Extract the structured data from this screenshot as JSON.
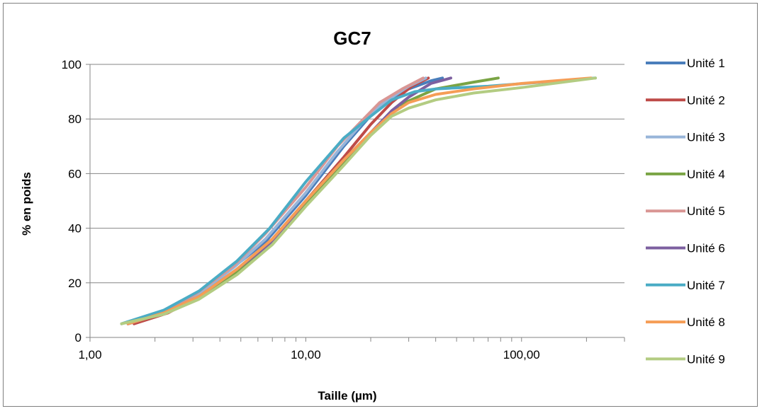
{
  "chart_data": {
    "type": "line",
    "title": "GC7",
    "xlabel": "Taille (µm)",
    "ylabel": "% en poids",
    "xscale": "log",
    "xlim": [
      1,
      300
    ],
    "ylim": [
      0,
      100
    ],
    "x_ticks": [
      {
        "value": 1,
        "label": "1,00"
      },
      {
        "value": 10,
        "label": "10,00"
      },
      {
        "value": 100,
        "label": "100,00"
      }
    ],
    "y_ticks": [
      {
        "value": 0,
        "label": "0"
      },
      {
        "value": 20,
        "label": "20"
      },
      {
        "value": 40,
        "label": "40"
      },
      {
        "value": 60,
        "label": "60"
      },
      {
        "value": 80,
        "label": "80"
      },
      {
        "value": 100,
        "label": "100"
      }
    ],
    "grid": "horizontal",
    "legend_position": "right",
    "series": [
      {
        "name": "Unité 1",
        "color": "#4a7ebb",
        "points": [
          [
            1.5,
            5
          ],
          [
            2.2,
            9
          ],
          [
            3,
            15
          ],
          [
            4.5,
            25
          ],
          [
            6.5,
            35
          ],
          [
            10,
            52
          ],
          [
            15,
            70
          ],
          [
            22,
            85
          ],
          [
            30,
            91
          ],
          [
            38,
            94
          ],
          [
            43,
            95
          ]
        ]
      },
      {
        "name": "Unité 2",
        "color": "#be4b48",
        "points": [
          [
            1.6,
            5
          ],
          [
            2.3,
            9
          ],
          [
            3.2,
            15
          ],
          [
            4.8,
            25
          ],
          [
            7,
            36
          ],
          [
            10,
            50
          ],
          [
            15,
            66
          ],
          [
            20,
            78
          ],
          [
            25,
            86
          ],
          [
            31,
            92
          ],
          [
            37,
            95
          ]
        ]
      },
      {
        "name": "Unité 3",
        "color": "#98b5d9",
        "points": [
          [
            1.5,
            5
          ],
          [
            2.2,
            9
          ],
          [
            3.1,
            15
          ],
          [
            4.7,
            26
          ],
          [
            6.5,
            36
          ],
          [
            10,
            53
          ],
          [
            14,
            68
          ],
          [
            18,
            78
          ],
          [
            23,
            86
          ],
          [
            30,
            92
          ],
          [
            36,
            95
          ]
        ]
      },
      {
        "name": "Unité 4",
        "color": "#7aa444",
        "points": [
          [
            1.5,
            5
          ],
          [
            2.2,
            9
          ],
          [
            3.3,
            15
          ],
          [
            5,
            25
          ],
          [
            7,
            35
          ],
          [
            10,
            49
          ],
          [
            15,
            64
          ],
          [
            20,
            75
          ],
          [
            27,
            85
          ],
          [
            40,
            91
          ],
          [
            60,
            93.5
          ],
          [
            78,
            95
          ]
        ]
      },
      {
        "name": "Unité 5",
        "color": "#d99694",
        "points": [
          [
            1.5,
            5
          ],
          [
            2.2,
            9
          ],
          [
            3.1,
            16
          ],
          [
            4.6,
            26
          ],
          [
            6.5,
            38
          ],
          [
            10,
            55
          ],
          [
            14,
            70
          ],
          [
            18,
            79
          ],
          [
            22,
            86
          ],
          [
            28,
            91
          ],
          [
            35,
            95
          ]
        ]
      },
      {
        "name": "Unité 6",
        "color": "#7d60a0",
        "points": [
          [
            1.5,
            5
          ],
          [
            2.2,
            9
          ],
          [
            3.2,
            15
          ],
          [
            4.8,
            25
          ],
          [
            7,
            35
          ],
          [
            10,
            50
          ],
          [
            15,
            65
          ],
          [
            20,
            75
          ],
          [
            25,
            83
          ],
          [
            30,
            88
          ],
          [
            38,
            93
          ],
          [
            47,
            95
          ]
        ]
      },
      {
        "name": "Unité 7",
        "color": "#4aacc5",
        "points": [
          [
            1.4,
            5
          ],
          [
            2.2,
            10
          ],
          [
            3.2,
            17
          ],
          [
            4.8,
            28
          ],
          [
            6.8,
            40
          ],
          [
            10,
            57
          ],
          [
            15,
            73
          ],
          [
            20,
            81
          ],
          [
            25,
            87
          ],
          [
            32,
            90
          ],
          [
            40,
            91
          ],
          [
            70,
            92
          ],
          [
            150,
            94
          ],
          [
            220,
            95
          ]
        ]
      },
      {
        "name": "Unité 8",
        "color": "#f59d56",
        "points": [
          [
            1.5,
            5
          ],
          [
            2.2,
            9
          ],
          [
            3.2,
            15
          ],
          [
            4.8,
            25
          ],
          [
            7,
            36
          ],
          [
            10,
            50
          ],
          [
            15,
            65
          ],
          [
            20,
            75
          ],
          [
            25,
            82
          ],
          [
            30,
            86
          ],
          [
            40,
            89
          ],
          [
            60,
            91
          ],
          [
            100,
            93
          ],
          [
            210,
            95
          ]
        ]
      },
      {
        "name": "Unité 9",
        "color": "#b3cc82",
        "points": [
          [
            1.4,
            5
          ],
          [
            2.2,
            8.5
          ],
          [
            3.2,
            14
          ],
          [
            4.8,
            23
          ],
          [
            7,
            34
          ],
          [
            10,
            48
          ],
          [
            15,
            63
          ],
          [
            20,
            74
          ],
          [
            25,
            81
          ],
          [
            30,
            84
          ],
          [
            40,
            87
          ],
          [
            60,
            89.5
          ],
          [
            100,
            91.5
          ],
          [
            220,
            95
          ]
        ]
      }
    ]
  }
}
